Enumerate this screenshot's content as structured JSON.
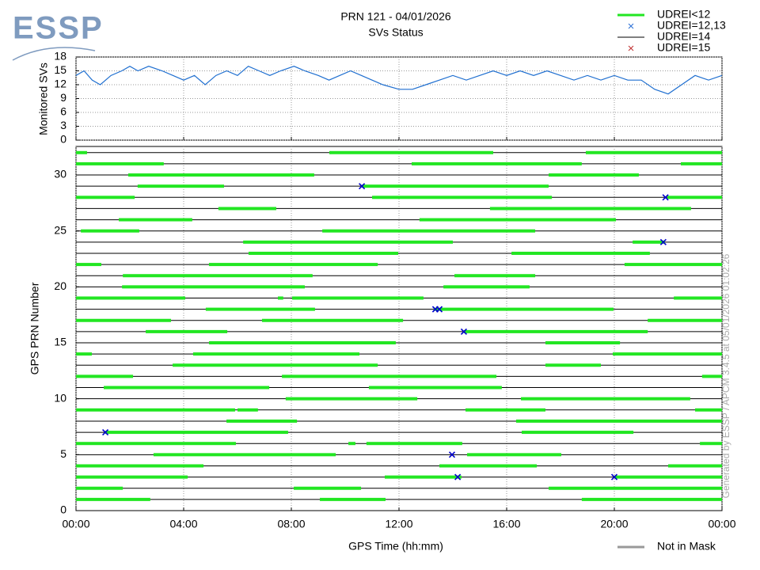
{
  "logo": "ESSP",
  "side_note": "Generated by ESSP / APCM 3.4.5 at 05/01/2026 01:02:26",
  "chart_data": [
    {
      "type": "line",
      "title": "PRN 121 - 04/01/2026",
      "subtitle": "SVs Status",
      "ylabel": "Monitored SVs",
      "color": "#1f6fd0",
      "ylim": [
        0,
        18
      ],
      "yticks": [
        0,
        3,
        6,
        9,
        12,
        15,
        18
      ],
      "grid": true,
      "x": [
        0,
        0.3,
        0.6,
        0.9,
        1.3,
        1.7,
        2,
        2.3,
        2.7,
        3.2,
        3.6,
        4,
        4.4,
        4.8,
        5.2,
        5.6,
        6,
        6.4,
        6.8,
        7.2,
        7.6,
        8.1,
        8.5,
        9,
        9.4,
        9.8,
        10.2,
        10.6,
        11,
        11.4,
        12,
        12.5,
        13,
        13.5,
        14,
        14.5,
        15,
        15.5,
        16,
        16.5,
        17,
        17.5,
        18,
        18.5,
        19,
        19.5,
        20,
        20.5,
        21,
        21.5,
        22,
        22.5,
        23,
        23.5,
        24
      ],
      "values": [
        14,
        15,
        13,
        12,
        14,
        15,
        16,
        15,
        16,
        15,
        14,
        13,
        14,
        12,
        14,
        15,
        14,
        16,
        15,
        14,
        15,
        16,
        15,
        14,
        13,
        14,
        15,
        14,
        13,
        12,
        11,
        11,
        12,
        13,
        14,
        13,
        14,
        15,
        14,
        15,
        14,
        15,
        14,
        13,
        14,
        13,
        14,
        13,
        13,
        11,
        10,
        12,
        14,
        13,
        14
      ]
    },
    {
      "type": "timeline",
      "ylabel": "GPS PRN Number",
      "xlabel": "GPS Time (hh:mm)",
      "xlim": [
        0,
        24
      ],
      "xticks": [
        {
          "value": 0,
          "label": "00:00"
        },
        {
          "value": 4,
          "label": "04:00"
        },
        {
          "value": 8,
          "label": "08:00"
        },
        {
          "value": 12,
          "label": "12:00"
        },
        {
          "value": 16,
          "label": "16:00"
        },
        {
          "value": 20,
          "label": "20:00"
        },
        {
          "value": 24,
          "label": "00:00"
        }
      ],
      "ylim": [
        0,
        32.55
      ],
      "yticks": [
        0,
        5,
        10,
        15,
        20,
        25,
        30
      ],
      "grid": true,
      "legend": [
        {
          "name": "UDREI<12",
          "color": "#22e622",
          "marker": "thick-line"
        },
        {
          "name": "UDREI=12,13",
          "color": "#2a6fd6",
          "marker": "x"
        },
        {
          "name": "UDREI=14",
          "color": "#000000",
          "marker": "line"
        },
        {
          "name": "UDREI=15",
          "color": "#c03030",
          "marker": "x"
        },
        {
          "name": "Not in Mask",
          "color": "#999999",
          "marker": "thick-line"
        }
      ],
      "rows": [
        {
          "prn": 1,
          "intervals": [
            [
              0,
              2.76
            ],
            [
              9.06,
              11.5
            ],
            [
              18.79,
              24
            ]
          ],
          "crosses": []
        },
        {
          "prn": 2,
          "intervals": [
            [
              0,
              1.74
            ],
            [
              8.09,
              10.59
            ],
            [
              17.56,
              24
            ]
          ],
          "crosses": []
        },
        {
          "prn": 3,
          "intervals": [
            [
              0,
              4.15
            ],
            [
              11.47,
              14.32
            ],
            [
              20,
              24
            ]
          ],
          "crosses": [
            14.18,
            20
          ]
        },
        {
          "prn": 4,
          "intervals": [
            [
              0,
              4.74
            ],
            [
              13.5,
              17.12
            ],
            [
              22,
              24
            ]
          ],
          "crosses": []
        },
        {
          "prn": 5,
          "intervals": [
            [
              2.88,
              9.65
            ],
            [
              14.53,
              18.03
            ]
          ],
          "crosses": [
            13.97
          ]
        },
        {
          "prn": 6,
          "intervals": [
            [
              0,
              5.94
            ],
            [
              10.12,
              10.38
            ],
            [
              10.79,
              14.35
            ],
            [
              23.18,
              24
            ]
          ],
          "crosses": []
        },
        {
          "prn": 7,
          "intervals": [
            [
              1.09,
              7.88
            ],
            [
              16.56,
              20.71
            ]
          ],
          "crosses": [
            1.09
          ]
        },
        {
          "prn": 8,
          "intervals": [
            [
              5.59,
              8.21
            ],
            [
              16.35,
              24
            ]
          ],
          "crosses": []
        },
        {
          "prn": 9,
          "intervals": [
            [
              0,
              5.91
            ],
            [
              6,
              6.76
            ],
            [
              14.47,
              17.44
            ],
            [
              23,
              24
            ]
          ],
          "crosses": []
        },
        {
          "prn": 10,
          "intervals": [
            [
              7.79,
              12.68
            ],
            [
              16.53,
              22.82
            ]
          ],
          "crosses": []
        },
        {
          "prn": 11,
          "intervals": [
            [
              1.03,
              7.18
            ],
            [
              10.88,
              15.82
            ]
          ],
          "crosses": []
        },
        {
          "prn": 12,
          "intervals": [
            [
              0,
              2.12
            ],
            [
              7.65,
              15.62
            ],
            [
              23.26,
              24
            ]
          ],
          "crosses": []
        },
        {
          "prn": 13,
          "intervals": [
            [
              3.59,
              11.21
            ],
            [
              17.44,
              19.5
            ]
          ],
          "crosses": []
        },
        {
          "prn": 14,
          "intervals": [
            [
              0,
              0.59
            ],
            [
              4.35,
              10.53
            ],
            [
              19.94,
              24
            ]
          ],
          "crosses": []
        },
        {
          "prn": 15,
          "intervals": [
            [
              4.94,
              11.88
            ],
            [
              17.44,
              20.21
            ]
          ],
          "crosses": []
        },
        {
          "prn": 16,
          "intervals": [
            [
              2.59,
              5.62
            ],
            [
              14.41,
              21.24
            ]
          ],
          "crosses": [
            14.41
          ]
        },
        {
          "prn": 17,
          "intervals": [
            [
              0,
              3.53
            ],
            [
              6.91,
              12.15
            ],
            [
              21.24,
              24
            ]
          ],
          "crosses": []
        },
        {
          "prn": 18,
          "intervals": [
            [
              4.82,
              8.88
            ],
            [
              13.29,
              19.97
            ]
          ],
          "crosses": [
            13.35,
            13.5
          ]
        },
        {
          "prn": 19,
          "intervals": [
            [
              0,
              4.06
            ],
            [
              7.5,
              7.7
            ],
            [
              8.03,
              12.91
            ],
            [
              22.21,
              24
            ]
          ],
          "crosses": []
        },
        {
          "prn": 20,
          "intervals": [
            [
              1.71,
              8.5
            ],
            [
              13.65,
              16.85
            ]
          ],
          "crosses": []
        },
        {
          "prn": 21,
          "intervals": [
            [
              1.74,
              8.79
            ],
            [
              14.06,
              17.06
            ]
          ],
          "crosses": []
        },
        {
          "prn": 22,
          "intervals": [
            [
              0,
              0.94
            ],
            [
              4.94,
              11.21
            ],
            [
              20.38,
              24
            ]
          ],
          "crosses": []
        },
        {
          "prn": 23,
          "intervals": [
            [
              6.41,
              11.97
            ],
            [
              16.18,
              21.32
            ]
          ],
          "crosses": []
        },
        {
          "prn": 24,
          "intervals": [
            [
              6.21,
              14
            ],
            [
              20.68,
              21.88
            ]
          ],
          "crosses": [
            21.82
          ]
        },
        {
          "prn": 25,
          "intervals": [
            [
              0.18,
              2.35
            ],
            [
              9.15,
              17.06
            ]
          ],
          "crosses": []
        },
        {
          "prn": 26,
          "intervals": [
            [
              1.59,
              4.32
            ],
            [
              12.76,
              20.06
            ]
          ],
          "crosses": []
        },
        {
          "prn": 27,
          "intervals": [
            [
              5.29,
              7.44
            ],
            [
              15.38,
              22.85
            ]
          ],
          "crosses": []
        },
        {
          "prn": 28,
          "intervals": [
            [
              0,
              2.18
            ],
            [
              11,
              17.68
            ],
            [
              21.97,
              24
            ]
          ],
          "crosses": [
            21.9
          ]
        },
        {
          "prn": 29,
          "intervals": [
            [
              2.29,
              5.5
            ],
            [
              10.62,
              17.56
            ]
          ],
          "crosses": [
            10.62
          ]
        },
        {
          "prn": 30,
          "intervals": [
            [
              1.94,
              8.85
            ],
            [
              17.56,
              20.91
            ]
          ],
          "crosses": []
        },
        {
          "prn": 31,
          "intervals": [
            [
              0,
              3.26
            ],
            [
              12.47,
              18.79
            ],
            [
              22.47,
              24
            ]
          ],
          "crosses": []
        },
        {
          "prn": 32,
          "intervals": [
            [
              0,
              0.41
            ],
            [
              9.41,
              15.5
            ],
            [
              18.94,
              24
            ]
          ],
          "crosses": []
        }
      ]
    }
  ]
}
